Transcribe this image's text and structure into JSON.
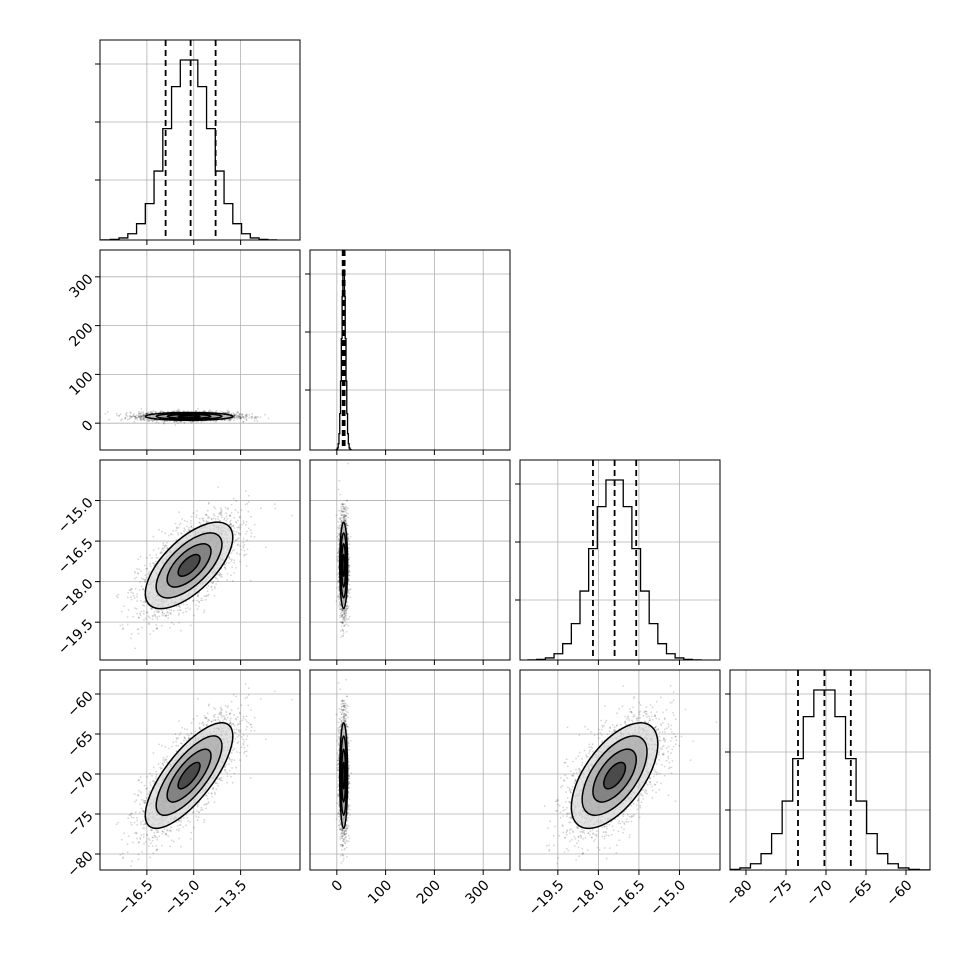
{
  "chart_data": {
    "type": "corner",
    "title": "",
    "grid": true,
    "colors": {
      "line": "#000000",
      "grid": "#b0b0b0",
      "points": "#000000"
    },
    "parameters": [
      {
        "name": "",
        "range": [
          -18.0,
          -11.6
        ],
        "ticks": [
          -16.5,
          -15.0,
          -13.5
        ],
        "tick_labels": [
          "−16.5",
          "−15.0",
          "−13.5"
        ],
        "mean": -15.15,
        "std": 0.7,
        "quantiles": [
          -15.9,
          -15.1,
          -14.3
        ]
      },
      {
        "name": "",
        "range": [
          -55,
          355
        ],
        "ticks": [
          0,
          100,
          200,
          300
        ],
        "tick_labels": [
          "0",
          "100",
          "200",
          "300"
        ],
        "mean": 14,
        "std": 4,
        "quantiles": [
          12,
          14,
          16
        ]
      },
      {
        "name": "",
        "range": [
          -20.9,
          -13.5
        ],
        "ticks": [
          -19.5,
          -18.0,
          -16.5,
          -15.0
        ],
        "tick_labels": [
          "−19.5",
          "−18.0",
          "−16.5",
          "−15.0"
        ],
        "mean": -17.4,
        "std": 0.8,
        "quantiles": [
          -18.2,
          -17.4,
          -16.6
        ]
      },
      {
        "name": "",
        "range": [
          -82,
          -57
        ],
        "ticks": [
          -80,
          -75,
          -70,
          -65,
          -60
        ],
        "tick_labels": [
          "−80",
          "−75",
          "−70",
          "−65",
          "−60"
        ],
        "mean": -70.2,
        "std": 3.3,
        "quantiles": [
          -73.5,
          -70.2,
          -66.9
        ]
      }
    ],
    "correlations": {
      "0-2": 0.65,
      "0-3": 0.75,
      "2-3": 0.6,
      "0-1": 0.0,
      "1-2": 0.0,
      "1-3": 0.0
    },
    "contour_levels_sigma": [
      0.5,
      1.0,
      1.5,
      2.0
    ],
    "samples_per_panel": 2500
  }
}
